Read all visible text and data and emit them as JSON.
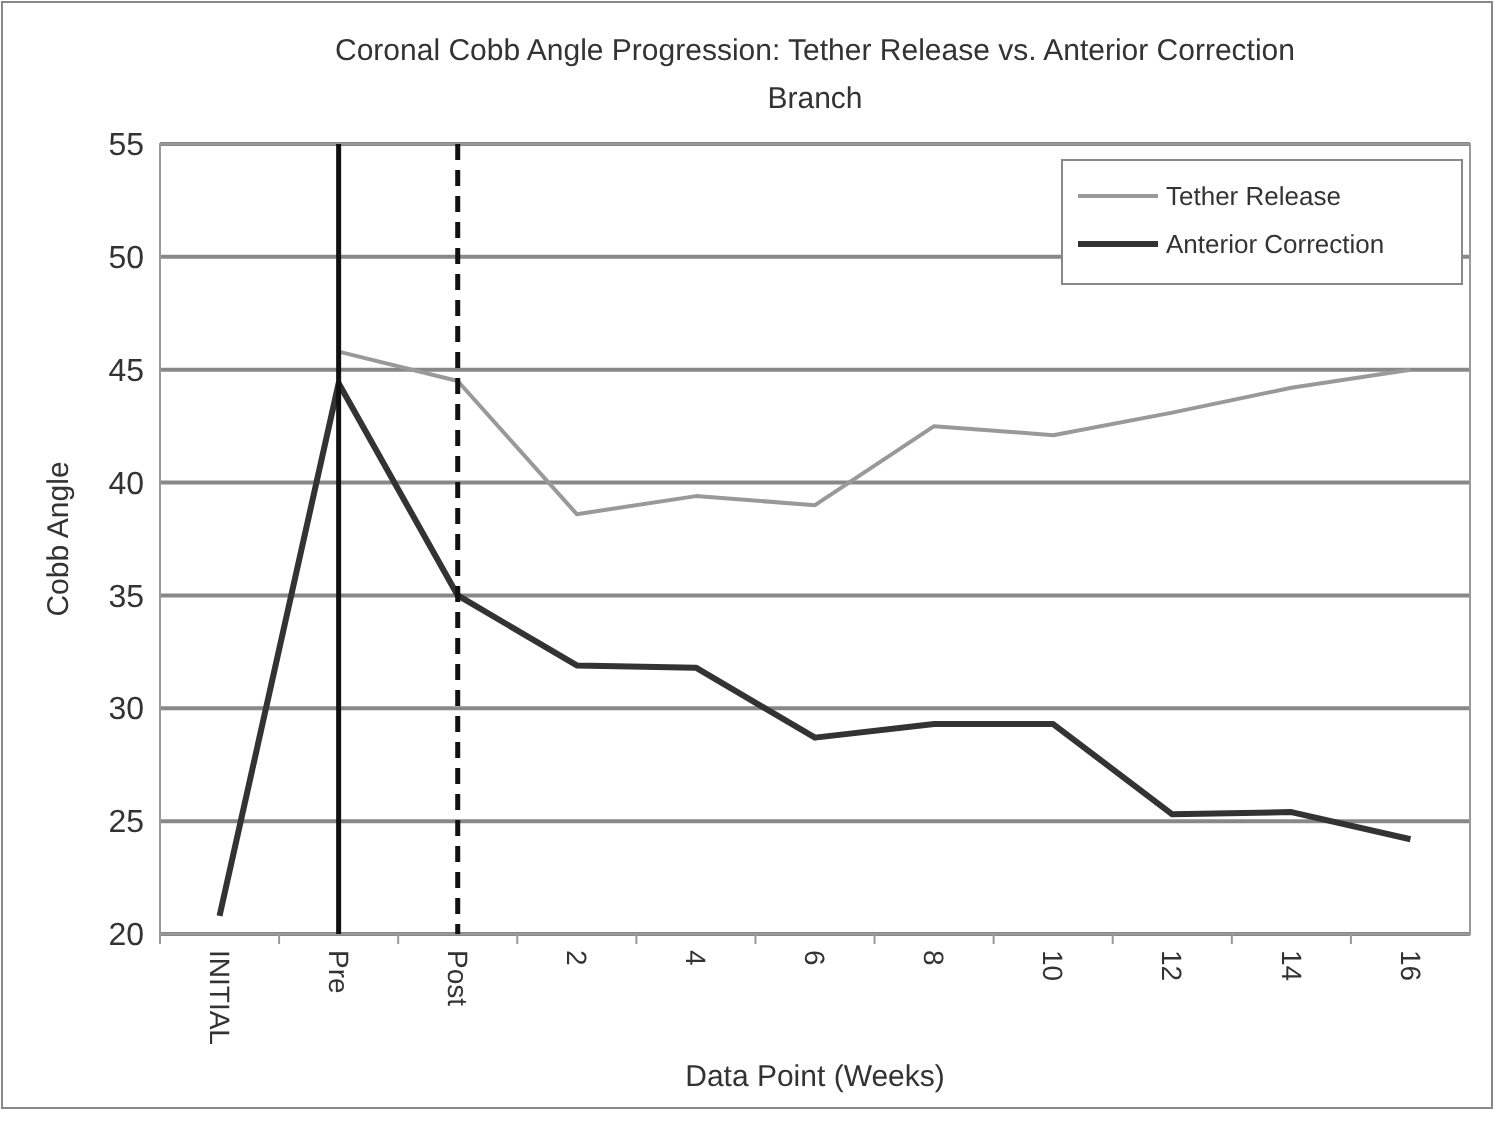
{
  "chart_data": {
    "type": "line",
    "title": "Coronal Cobb Angle Progression: Tether Release vs. Anterior Correction Branch",
    "xlabel": "Data Point (Weeks)",
    "ylabel": "Cobb Angle",
    "categories": [
      "INITIAL",
      "Pre",
      "Post",
      "2",
      "4",
      "6",
      "8",
      "10",
      "12",
      "14",
      "16"
    ],
    "series": [
      {
        "name": "Tether Release",
        "color": "#999999",
        "values": [
          null,
          45.8,
          44.5,
          38.6,
          39.4,
          39.0,
          42.5,
          42.1,
          43.1,
          44.2,
          45.0
        ]
      },
      {
        "name": "Anterior Correction",
        "color": "#333333",
        "values": [
          20.8,
          44.4,
          35.0,
          31.9,
          31.8,
          28.7,
          29.3,
          29.3,
          25.3,
          25.4,
          24.2
        ]
      }
    ],
    "ylim": [
      20,
      55
    ],
    "yticks": [
      20,
      25,
      30,
      35,
      40,
      45,
      50,
      55
    ],
    "grid": "y",
    "legend": "top right",
    "marker": "none",
    "line_style": "solid",
    "ref_lines": [
      {
        "axis": "x",
        "value": "Pre",
        "color": "#111111",
        "line_style": "solid"
      },
      {
        "axis": "x",
        "value": "Post",
        "color": "#111111",
        "line_style": "dashed"
      }
    ]
  }
}
